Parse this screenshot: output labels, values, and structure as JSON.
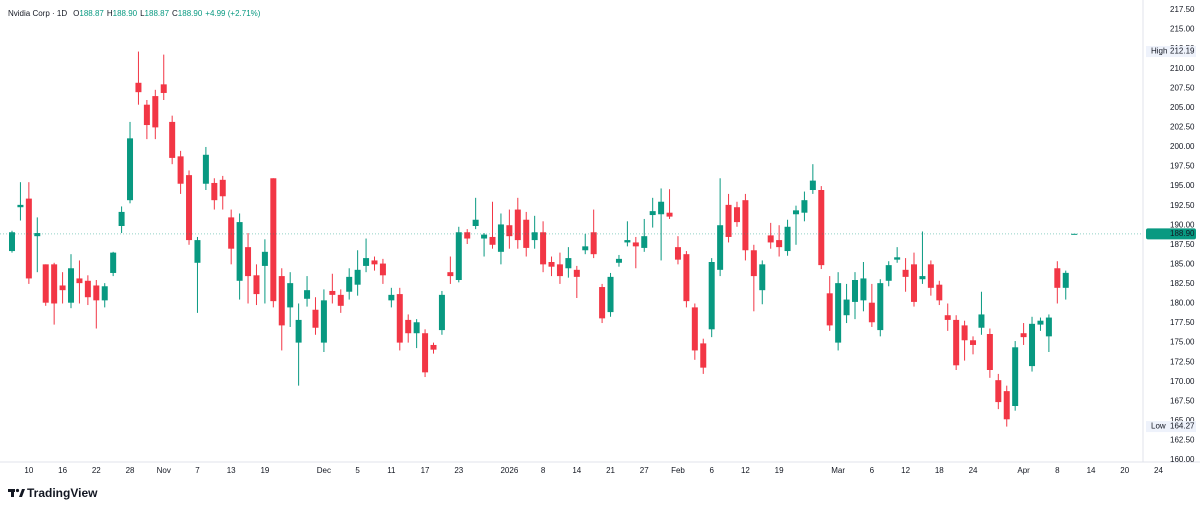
{
  "chart_data": {
    "type": "candlestick",
    "title": "Nvidia Corp · 1D",
    "ohlc": [
      {
        "label": "O",
        "value": 188.87
      },
      {
        "label": "H",
        "value": 188.9
      },
      {
        "label": "L",
        "value": 188.87
      },
      {
        "label": "C",
        "value": 188.9
      }
    ],
    "ohlc_labels": [
      "188.87",
      "188.90",
      "188.87",
      "188.90"
    ],
    "change": "+4.99 (+2.71%)",
    "up_color": "#089981",
    "down_color": "#f23645",
    "categories": [
      null,
      null,
      "10",
      null,
      null,
      null,
      "16",
      null,
      null,
      null,
      "22",
      null,
      null,
      null,
      "28",
      null,
      null,
      null,
      "Nov",
      null,
      null,
      null,
      "7",
      null,
      null,
      null,
      "13",
      null,
      null,
      null,
      "19",
      null,
      null,
      null,
      null,
      null,
      null,
      "Dec",
      null,
      null,
      null,
      "5",
      null,
      null,
      null,
      "11",
      null,
      null,
      null,
      "17",
      null,
      null,
      null,
      "23",
      null,
      null,
      null,
      null,
      null,
      "2026",
      null,
      null,
      null,
      "8",
      null,
      null,
      null,
      "14",
      null,
      null,
      null,
      "21",
      null,
      null,
      null,
      "27",
      null,
      null,
      null,
      "Feb",
      null,
      null,
      null,
      "6",
      null,
      null,
      null,
      "12",
      null,
      null,
      null,
      "19",
      null,
      null,
      null,
      null,
      null,
      null,
      "Mar",
      null,
      null,
      null,
      "6",
      null,
      null,
      null,
      "12",
      null,
      null,
      null,
      "18",
      null,
      null,
      null,
      "24",
      null,
      null,
      null,
      null,
      null,
      "Apr",
      null,
      null,
      null,
      "8",
      null,
      null,
      null,
      "14",
      null,
      null,
      null,
      "20",
      null,
      null,
      null,
      "24"
    ],
    "open": [
      186.7,
      192.3,
      193.4,
      188.6,
      185.0,
      185.0,
      182.3,
      180.1,
      183.2,
      182.9,
      182.3,
      180.4,
      183.9,
      189.9,
      193.2,
      208.2,
      205.4,
      206.5,
      208.0,
      203.2,
      198.8,
      196.4,
      185.2,
      195.3,
      195.4,
      195.8,
      191.0,
      182.9,
      187.2,
      183.6,
      184.8,
      196.0,
      183.5,
      179.5,
      175.0,
      180.6,
      179.2,
      175.0,
      181.6,
      181.1,
      181.5,
      182.4,
      184.8,
      185.5,
      185.1,
      180.4,
      181.2,
      177.9,
      176.2,
      176.2,
      174.7,
      176.6,
      184.0,
      183.0,
      189.1,
      189.9,
      188.3,
      188.5,
      186.6,
      190.0,
      192.0,
      190.7,
      188.1,
      189.1,
      185.3,
      185.0,
      184.5,
      184.3,
      186.8,
      189.1,
      182.1,
      178.9,
      185.2,
      187.8,
      187.8,
      187.1,
      191.3,
      191.4,
      191.6,
      187.2,
      186.3,
      179.5,
      174.9,
      176.7,
      184.3,
      192.6,
      192.3,
      193.2,
      186.8,
      181.7,
      188.7,
      188.1,
      186.7,
      191.4,
      191.6,
      194.5,
      194.5,
      181.3,
      175.0,
      178.5,
      180.2,
      180.4,
      180.1,
      176.6,
      182.9,
      185.6,
      184.3,
      185.0,
      183.1,
      185.0,
      182.4,
      178.5,
      177.9,
      177.2,
      175.3,
      176.9,
      176.1,
      170.2,
      168.8,
      166.9,
      176.2,
      172.0,
      177.3,
      175.8,
      184.5,
      182.0,
      188.87,
      null,
      null,
      null,
      null,
      null,
      null,
      null,
      null,
      null,
      null
    ],
    "high": [
      189.3,
      195.5,
      195.5,
      191.0,
      185.0,
      185.2,
      184.0,
      186.3,
      185.5,
      183.6,
      183.0,
      182.6,
      186.6,
      192.4,
      203.2,
      212.19,
      206.0,
      207.3,
      211.8,
      204.0,
      199.5,
      197.0,
      188.5,
      200.0,
      196.0,
      196.3,
      192.0,
      191.5,
      189.0,
      185.0,
      188.2,
      196.0,
      184.5,
      184.0,
      180.0,
      183.5,
      180.8,
      181.8,
      183.8,
      181.8,
      184.5,
      186.8,
      188.3,
      186.0,
      185.7,
      182.0,
      182.0,
      178.6,
      178.0,
      176.7,
      175.0,
      181.6,
      186.0,
      189.8,
      189.5,
      193.5,
      189.0,
      193.0,
      191.5,
      192.0,
      193.5,
      191.7,
      191.2,
      190.5,
      186.0,
      186.5,
      187.2,
      184.8,
      188.9,
      192.0,
      182.5,
      183.9,
      186.2,
      190.5,
      188.5,
      190.8,
      193.5,
      194.7,
      194.6,
      188.6,
      186.7,
      180.0,
      175.5,
      185.8,
      196.0,
      194.0,
      193.0,
      194.0,
      187.5,
      185.5,
      190.3,
      190.0,
      190.7,
      192.5,
      194.3,
      197.8,
      195.0,
      183.5,
      184.0,
      182.5,
      184.0,
      185.3,
      182.5,
      183.1,
      185.4,
      187.2,
      185.8,
      186.5,
      189.2,
      185.5,
      182.9,
      180.0,
      178.5,
      177.8,
      175.8,
      181.5,
      176.8,
      171.0,
      169.5,
      175.2,
      177.5,
      178.3,
      178.2,
      178.6,
      185.4,
      184.2,
      188.9,
      null,
      null,
      null,
      null,
      null,
      null,
      null,
      null,
      null,
      null
    ],
    "low": [
      186.5,
      190.6,
      182.5,
      184.0,
      179.7,
      177.3,
      180.0,
      179.4,
      180.0,
      179.8,
      176.8,
      179.5,
      183.5,
      189.0,
      192.8,
      205.4,
      201.0,
      201.0,
      206.0,
      197.8,
      194.0,
      187.5,
      178.8,
      194.5,
      192.0,
      192.0,
      185.0,
      180.5,
      180.0,
      179.8,
      180.0,
      179.5,
      174.0,
      177.0,
      169.5,
      179.6,
      176.0,
      173.8,
      180.0,
      178.8,
      180.5,
      181.0,
      184.0,
      184.2,
      182.5,
      179.5,
      174.0,
      175.0,
      174.3,
      170.6,
      173.6,
      176.0,
      182.5,
      182.7,
      187.6,
      189.5,
      186.0,
      187.0,
      185.0,
      187.0,
      187.0,
      186.0,
      187.0,
      184.0,
      183.5,
      182.5,
      183.3,
      180.7,
      186.3,
      185.8,
      177.5,
      178.3,
      184.7,
      187.3,
      184.5,
      186.6,
      189.7,
      185.5,
      190.8,
      185.0,
      179.5,
      172.8,
      171.0,
      175.7,
      183.5,
      187.8,
      189.8,
      185.5,
      179.0,
      179.9,
      187.0,
      186.0,
      186.1,
      187.5,
      190.5,
      194.0,
      184.4,
      176.5,
      174.0,
      177.5,
      178.0,
      179.0,
      177.0,
      175.8,
      182.2,
      185.2,
      181.5,
      179.6,
      182.5,
      181.0,
      179.8,
      176.5,
      171.5,
      172.7,
      173.5,
      176.0,
      170.5,
      166.5,
      164.27,
      166.3,
      174.7,
      171.3,
      176.5,
      173.8,
      180.0,
      180.5,
      188.87,
      null,
      null,
      null,
      null,
      null,
      null,
      null,
      null,
      null,
      null
    ],
    "close": [
      189.1,
      192.6,
      183.2,
      189.0,
      180.1,
      180.0,
      181.7,
      184.5,
      182.6,
      180.8,
      180.4,
      182.2,
      186.5,
      191.7,
      201.1,
      207.0,
      202.8,
      202.5,
      206.9,
      198.6,
      195.3,
      188.1,
      188.1,
      199.0,
      193.2,
      193.7,
      187.0,
      190.4,
      183.5,
      181.2,
      186.6,
      180.3,
      177.2,
      182.6,
      177.9,
      181.7,
      176.9,
      180.4,
      181.1,
      179.7,
      183.4,
      184.3,
      185.8,
      185.0,
      183.6,
      181.1,
      175.0,
      176.2,
      177.6,
      171.2,
      174.1,
      181.1,
      183.5,
      189.1,
      188.3,
      190.7,
      188.8,
      187.5,
      190.1,
      188.6,
      188.1,
      187.1,
      189.1,
      185.0,
      184.7,
      183.5,
      185.8,
      183.4,
      187.3,
      186.3,
      178.1,
      183.4,
      185.7,
      188.1,
      187.3,
      188.6,
      191.8,
      193.0,
      191.1,
      185.6,
      180.3,
      174.0,
      171.8,
      185.3,
      190.0,
      188.5,
      190.4,
      186.8,
      183.5,
      185.0,
      187.8,
      187.2,
      189.8,
      191.9,
      193.2,
      195.7,
      184.9,
      177.2,
      182.6,
      180.5,
      183.0,
      183.2,
      177.6,
      182.6,
      184.9,
      185.9,
      183.4,
      180.2,
      183.5,
      182.0,
      180.4,
      177.9,
      172.1,
      175.3,
      174.7,
      178.6,
      171.5,
      167.4,
      165.2,
      174.4,
      175.7,
      177.4,
      177.8,
      178.2,
      182.0,
      183.91,
      188.9,
      null,
      null,
      null,
      null,
      null,
      null,
      null,
      null,
      null,
      null
    ],
    "ylim": [
      160,
      217.5
    ],
    "yticks": [
      {
        "value": 160,
        "label": "160.00"
      },
      {
        "value": 162.5,
        "label": "162.50"
      },
      {
        "value": 165,
        "label": "165.00"
      },
      {
        "value": 167.5,
        "label": "167.50"
      },
      {
        "value": 170,
        "label": "170.00"
      },
      {
        "value": 172.5,
        "label": "172.50"
      },
      {
        "value": 175,
        "label": "175.00"
      },
      {
        "value": 177.5,
        "label": "177.50"
      },
      {
        "value": 180,
        "label": "180.00"
      },
      {
        "value": 182.5,
        "label": "182.50"
      },
      {
        "value": 185,
        "label": "185.00"
      },
      {
        "value": 187.5,
        "label": "187.50"
      },
      {
        "value": 190,
        "label": "190.00"
      },
      {
        "value": 192.5,
        "label": "192.50"
      },
      {
        "value": 195,
        "label": "195.00"
      },
      {
        "value": 197.5,
        "label": "197.50"
      },
      {
        "value": 200,
        "label": "200.00"
      },
      {
        "value": 202.5,
        "label": "202.50"
      },
      {
        "value": 205,
        "label": "205.00"
      },
      {
        "value": 207.5,
        "label": "207.50"
      },
      {
        "value": 210,
        "label": "210.00"
      },
      {
        "value": 212.5,
        "label": "212.50"
      },
      {
        "value": 215,
        "label": "215.00"
      },
      {
        "value": 217.5,
        "label": "217.50"
      }
    ],
    "markers": [
      {
        "label": "High",
        "value": 212.19
      },
      {
        "label": "Low",
        "value": 164.27
      }
    ],
    "last_price": {
      "value": 188.9,
      "label": "188.90"
    },
    "grid": false
  },
  "footer": {
    "brand": "TradingView"
  }
}
